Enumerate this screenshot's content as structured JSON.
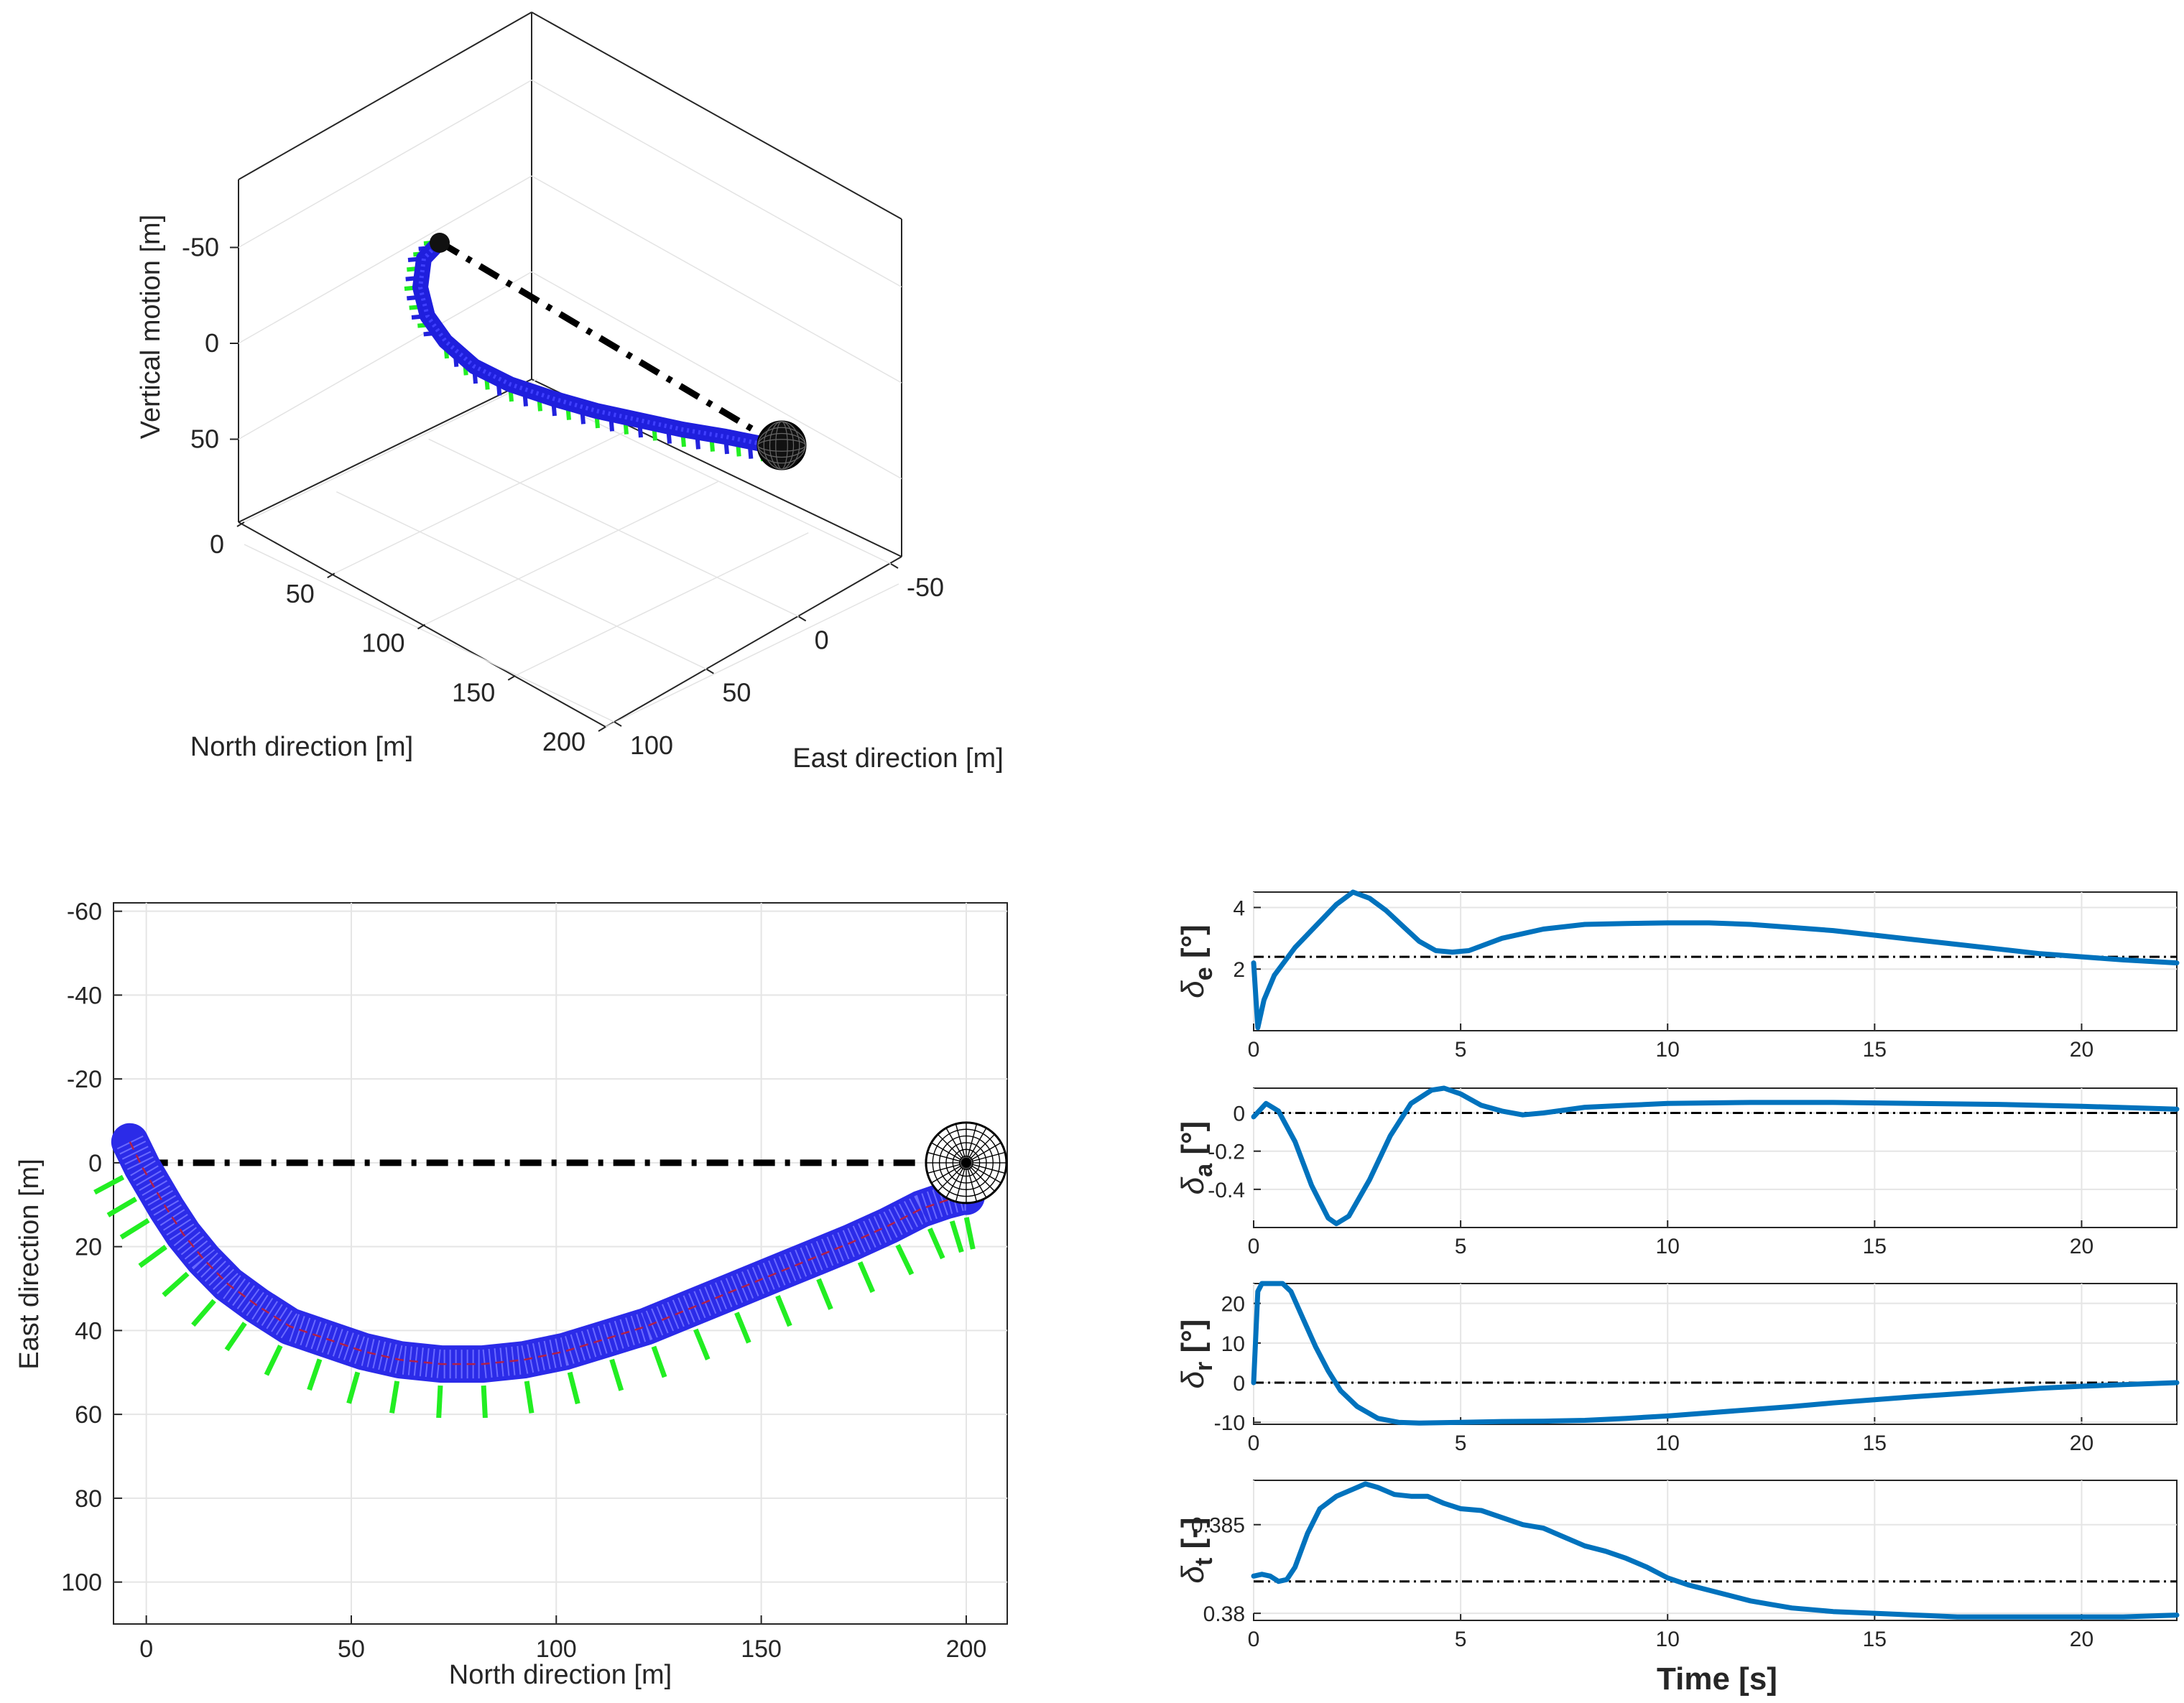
{
  "chart_data": [
    {
      "type": "line3d",
      "title": "",
      "xlabel": "North direction [m]",
      "ylabel": "East direction [m]",
      "zlabel": "Vertical motion [m]",
      "x_ticks": [
        0,
        50,
        100,
        150,
        200
      ],
      "y_ticks": [
        -50,
        0,
        50,
        100
      ],
      "z_ticks": [
        -50,
        0,
        50
      ],
      "series": [
        {
          "name": "trajectory",
          "north": [
            0,
            2,
            5,
            10,
            18,
            28,
            40,
            55,
            70,
            85,
            100,
            115,
            130,
            145,
            160,
            175,
            188,
            196,
            200
          ],
          "east": [
            0,
            6,
            13,
            20,
            28,
            35,
            41,
            45,
            47,
            48,
            47,
            44,
            40,
            35,
            29,
            22,
            16,
            10,
            7
          ],
          "vertical": [
            0,
            0,
            0,
            0,
            0,
            0,
            0,
            0,
            0,
            0,
            0,
            0,
            0,
            0,
            0,
            0,
            0,
            0,
            0
          ]
        },
        {
          "name": "straight line to target",
          "north": [
            0,
            200
          ],
          "east": [
            0,
            0
          ],
          "vertical": [
            0,
            0
          ]
        }
      ],
      "markers": [
        {
          "name": "target sphere",
          "north": 200,
          "east": 0,
          "vertical": 0
        }
      ]
    },
    {
      "type": "line",
      "title": "",
      "xlabel": "North direction [m]",
      "ylabel": "East direction [m]",
      "xlim": [
        -8,
        210
      ],
      "ylim": [
        -62,
        110
      ],
      "y_reversed": true,
      "x_ticks": [
        0,
        50,
        100,
        150,
        200
      ],
      "y_ticks": [
        -60,
        -40,
        -20,
        0,
        20,
        40,
        60,
        80,
        100
      ],
      "grid": true,
      "series": [
        {
          "name": "trajectory",
          "x": [
            -4,
            -1,
            2,
            5,
            9,
            14,
            20,
            27,
            35,
            44,
            53,
            62,
            72,
            82,
            92,
            102,
            112,
            122,
            132,
            142,
            152,
            162,
            172,
            181,
            189,
            195,
            199,
            200
          ],
          "y": [
            -5,
            1,
            6,
            11,
            17,
            23,
            29,
            34,
            39,
            42,
            45,
            47,
            48,
            48,
            47,
            45,
            42,
            39,
            35,
            31,
            27,
            23,
            19,
            15,
            11,
            9,
            8,
            8
          ]
        },
        {
          "name": "reference line",
          "x": [
            0,
            200
          ],
          "y": [
            0,
            0
          ]
        }
      ],
      "markers": [
        {
          "name": "target sphere",
          "x": 200,
          "y": 0
        }
      ]
    },
    {
      "type": "line",
      "title": "",
      "xlabel": "",
      "ylabel": "δe [°]",
      "xlim": [
        0,
        22.3
      ],
      "ylim": [
        0.0,
        4.5
      ],
      "x_ticks": [
        0,
        5,
        10,
        15,
        20
      ],
      "y_ticks": [
        2,
        4
      ],
      "grid": true,
      "reference": 2.4,
      "series": [
        {
          "name": "delta_e",
          "x": [
            0,
            0.1,
            0.25,
            0.5,
            1.0,
            1.5,
            2.0,
            2.4,
            2.8,
            3.2,
            3.6,
            4.0,
            4.4,
            4.8,
            5.2,
            5.6,
            6.0,
            7.0,
            8.0,
            9.0,
            10.0,
            11.0,
            12.0,
            13.0,
            14.0,
            15.0,
            16.0,
            17.0,
            18.0,
            19.0,
            20.0,
            21.0,
            22.3
          ],
          "y": [
            2.2,
            0.1,
            1.0,
            1.8,
            2.7,
            3.4,
            4.1,
            4.5,
            4.3,
            3.9,
            3.4,
            2.9,
            2.6,
            2.55,
            2.6,
            2.8,
            3.0,
            3.3,
            3.45,
            3.48,
            3.5,
            3.5,
            3.45,
            3.35,
            3.25,
            3.1,
            2.95,
            2.8,
            2.65,
            2.5,
            2.4,
            2.3,
            2.2
          ]
        }
      ]
    },
    {
      "type": "line",
      "title": "",
      "xlabel": "",
      "ylabel": "δa [°]",
      "xlim": [
        0,
        22.3
      ],
      "ylim": [
        -0.6,
        0.13
      ],
      "x_ticks": [
        0,
        5,
        10,
        15,
        20
      ],
      "y_ticks": [
        -0.4,
        -0.2,
        0
      ],
      "grid": true,
      "reference": 0.0,
      "series": [
        {
          "name": "delta_a",
          "x": [
            0,
            0.3,
            0.6,
            1.0,
            1.4,
            1.8,
            2.0,
            2.3,
            2.8,
            3.3,
            3.8,
            4.3,
            4.6,
            5.0,
            5.5,
            6.0,
            6.5,
            7.0,
            8.0,
            9.0,
            10.0,
            12.0,
            14.0,
            16.0,
            18.0,
            20.0,
            22.3
          ],
          "y": [
            -0.02,
            0.05,
            0.01,
            -0.15,
            -0.38,
            -0.55,
            -0.58,
            -0.54,
            -0.35,
            -0.12,
            0.05,
            0.12,
            0.13,
            0.1,
            0.04,
            0.01,
            -0.01,
            0.0,
            0.03,
            0.04,
            0.05,
            0.055,
            0.055,
            0.05,
            0.045,
            0.035,
            0.02
          ]
        }
      ]
    },
    {
      "type": "line",
      "title": "",
      "xlabel": "",
      "ylabel": "δr [°]",
      "xlim": [
        0,
        22.3
      ],
      "ylim": [
        -10.5,
        25
      ],
      "x_ticks": [
        0,
        5,
        10,
        15,
        20
      ],
      "y_ticks": [
        -10,
        0,
        10,
        20
      ],
      "grid": true,
      "reference": 0.0,
      "series": [
        {
          "name": "delta_r",
          "x": [
            0,
            0.1,
            0.2,
            0.7,
            0.9,
            1.2,
            1.5,
            1.8,
            2.1,
            2.5,
            3.0,
            3.5,
            4.0,
            5.0,
            6.0,
            7.0,
            8.0,
            9.0,
            10.0,
            11.0,
            12.0,
            13.0,
            14.0,
            15.0,
            16.0,
            17.0,
            18.0,
            19.0,
            20.0,
            21.0,
            22.3
          ],
          "y": [
            0,
            23,
            25,
            25,
            23,
            16,
            9,
            3,
            -2,
            -6,
            -9,
            -10,
            -10.2,
            -10,
            -9.8,
            -9.7,
            -9.5,
            -9.0,
            -8.4,
            -7.6,
            -6.8,
            -6.0,
            -5.1,
            -4.3,
            -3.5,
            -2.8,
            -2.1,
            -1.4,
            -0.9,
            -0.5,
            0
          ]
        }
      ]
    },
    {
      "type": "line",
      "title": "",
      "xlabel": "Time [s]",
      "ylabel": "δt [-]",
      "xlim": [
        0,
        22.3
      ],
      "ylim": [
        0.3796,
        0.3875
      ],
      "x_ticks": [
        0,
        5,
        10,
        15,
        20
      ],
      "y_ticks": [
        0.38,
        0.385
      ],
      "grid": true,
      "reference": 0.3818,
      "series": [
        {
          "name": "delta_t",
          "x": [
            0,
            0.2,
            0.4,
            0.6,
            0.8,
            1.0,
            1.3,
            1.6,
            2.0,
            2.4,
            2.7,
            3.0,
            3.4,
            3.8,
            4.2,
            4.6,
            5.0,
            5.5,
            6.0,
            6.5,
            7.0,
            7.5,
            8.0,
            8.5,
            9.0,
            9.5,
            10.0,
            10.5,
            11.0,
            11.5,
            12.0,
            12.5,
            13.0,
            13.5,
            14.0,
            15.0,
            16.0,
            17.0,
            18.0,
            19.0,
            20.0,
            21.0,
            22.3
          ],
          "y": [
            0.3821,
            0.3822,
            0.3821,
            0.3818,
            0.3819,
            0.3826,
            0.3845,
            0.3859,
            0.3866,
            0.387,
            0.3873,
            0.3871,
            0.3867,
            0.3866,
            0.3866,
            0.3862,
            0.3859,
            0.3858,
            0.3854,
            0.385,
            0.3848,
            0.3843,
            0.3838,
            0.3835,
            0.3831,
            0.3826,
            0.382,
            0.3816,
            0.3813,
            0.381,
            0.3807,
            0.3805,
            0.3803,
            0.3802,
            0.3801,
            0.38,
            0.3799,
            0.3798,
            0.3798,
            0.3798,
            0.3798,
            0.3798,
            0.3799
          ]
        }
      ]
    }
  ],
  "colors": {
    "line": "#0072BD",
    "reference": "#000000",
    "trajectory3d": "#1F1FDD",
    "fins": "#22EE22",
    "grid": "#E5E5E5",
    "axis": "#262626"
  }
}
